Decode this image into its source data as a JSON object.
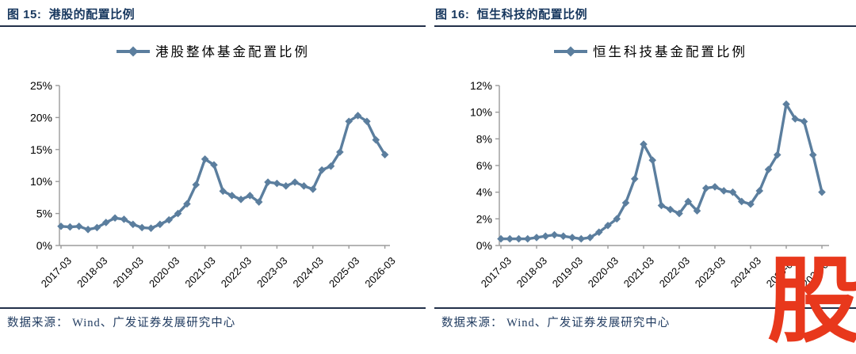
{
  "colors": {
    "title_navy": "#17375E",
    "source_navy": "#1F3A5F",
    "line_blue": "#5B7E9E",
    "axis_gray": "#9b9b9b",
    "tick_label_black": "#000000",
    "watermark_red": "#E8381C",
    "rule_dark": "#22304a"
  },
  "watermark": {
    "char": "股"
  },
  "panels": [
    {
      "title": "图 15:  港股的配置比例",
      "source": "数据来源： Wind、广发证券发展研究中心"
    },
    {
      "title": "图 16:  恒生科技的配置比例",
      "source": "数据来源： Wind、广发证券发展研究中心"
    }
  ],
  "chart_data": [
    {
      "type": "line",
      "title": "图 15: 港股的配置比例",
      "legend": "港股整体基金配置比例",
      "legend_position": "top-center",
      "marker": "diamond",
      "line_color": "#5B7E9E",
      "grid": false,
      "ylim": [
        0,
        25
      ],
      "ytick_step": 5,
      "ytick_labels": [
        "0%",
        "5%",
        "10%",
        "15%",
        "20%",
        "25%"
      ],
      "x_tick_labels": [
        "2017-03",
        "2018-03",
        "2019-03",
        "2020-03",
        "2021-03",
        "2022-03",
        "2023-03",
        "2024-03",
        "2025-03",
        "2026-03"
      ],
      "x": [
        "2017-03",
        "2017-06",
        "2017-09",
        "2017-12",
        "2018-03",
        "2018-06",
        "2018-09",
        "2018-12",
        "2019-03",
        "2019-06",
        "2019-09",
        "2019-12",
        "2020-03",
        "2020-06",
        "2020-09",
        "2020-12",
        "2021-03",
        "2021-06",
        "2021-09",
        "2021-12",
        "2022-03",
        "2022-06",
        "2022-09",
        "2022-12",
        "2023-03",
        "2023-06",
        "2023-09",
        "2023-12",
        "2024-03",
        "2024-06",
        "2024-09",
        "2024-12",
        "2025-03",
        "2025-06",
        "2025-09",
        "2025-12",
        "2026-03"
      ],
      "values": [
        3.0,
        2.9,
        3.0,
        2.5,
        2.8,
        3.6,
        4.3,
        4.1,
        3.3,
        2.8,
        2.7,
        3.3,
        4.0,
        5.0,
        6.5,
        9.5,
        13.5,
        12.6,
        8.5,
        7.8,
        7.2,
        7.8,
        6.8,
        9.9,
        9.7,
        9.3,
        9.9,
        9.3,
        8.8,
        11.8,
        12.4,
        14.6,
        19.4,
        20.3,
        19.4,
        16.5,
        14.2
      ]
    },
    {
      "type": "line",
      "title": "图 16: 恒生科技的配置比例",
      "legend": "恒生科技基金配置比例",
      "legend_position": "top-center",
      "marker": "diamond",
      "line_color": "#5B7E9E",
      "grid": false,
      "ylim": [
        0,
        12
      ],
      "ytick_step": 2,
      "ytick_labels": [
        "0%",
        "2%",
        "4%",
        "6%",
        "8%",
        "10%",
        "12%"
      ],
      "x_tick_labels": [
        "2017-03",
        "2018-03",
        "2019-03",
        "2020-03",
        "2021-03",
        "2022-03",
        "2023-03",
        "2024-03",
        "2025-03",
        "2026-03"
      ],
      "x": [
        "2017-03",
        "2017-06",
        "2017-09",
        "2017-12",
        "2018-03",
        "2018-06",
        "2018-09",
        "2018-12",
        "2019-03",
        "2019-06",
        "2019-09",
        "2019-12",
        "2020-03",
        "2020-06",
        "2020-09",
        "2020-12",
        "2021-03",
        "2021-06",
        "2021-09",
        "2021-12",
        "2022-03",
        "2022-06",
        "2022-09",
        "2022-12",
        "2023-03",
        "2023-06",
        "2023-09",
        "2023-12",
        "2024-03",
        "2024-06",
        "2024-09",
        "2024-12",
        "2025-03",
        "2025-06",
        "2025-09",
        "2025-12",
        "2026-03"
      ],
      "values": [
        0.5,
        0.5,
        0.5,
        0.5,
        0.6,
        0.7,
        0.8,
        0.7,
        0.6,
        0.5,
        0.6,
        1.0,
        1.5,
        2.0,
        3.2,
        5.0,
        7.6,
        6.4,
        3.0,
        2.7,
        2.4,
        3.3,
        2.6,
        4.3,
        4.4,
        4.1,
        4.0,
        3.3,
        3.1,
        4.1,
        5.7,
        6.8,
        10.6,
        9.5,
        9.3,
        6.8,
        4.0
      ]
    }
  ]
}
